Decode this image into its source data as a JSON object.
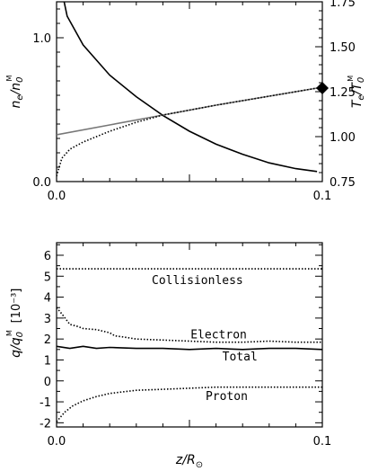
{
  "chart_data": [
    {
      "type": "line",
      "panel": "top",
      "xlabel": "",
      "ylabel_left": "n_e/n_0^M",
      "ylabel_right": "T_e/T_0^M",
      "xlim": [
        0.0,
        0.1
      ],
      "ylim_left": [
        0.0,
        1.25
      ],
      "ylim_right": [
        0.75,
        1.75
      ],
      "x_ticks": [
        "0.0",
        "0.1"
      ],
      "y_ticks_left": [
        "0.0",
        "1.0"
      ],
      "y_ticks_right": [
        "0.75",
        "1.00",
        "1.25",
        "1.50",
        "1.75"
      ],
      "series": [
        {
          "axis": "left",
          "style": "solid",
          "color": "#000000",
          "x": [
            0.0,
            0.004,
            0.01,
            0.02,
            0.03,
            0.04,
            0.05,
            0.06,
            0.07,
            0.08,
            0.09,
            0.098
          ],
          "y": [
            1.5,
            1.15,
            0.95,
            0.74,
            0.59,
            0.46,
            0.35,
            0.26,
            0.19,
            0.13,
            0.09,
            0.07
          ]
        },
        {
          "axis": "right",
          "style": "solid",
          "color": "#777777",
          "x": [
            0.0,
            0.02,
            0.04,
            0.06,
            0.08,
            0.098
          ],
          "y": [
            1.01,
            1.065,
            1.12,
            1.175,
            1.225,
            1.27
          ]
        },
        {
          "axis": "right",
          "style": "dotted",
          "color": "#000000",
          "x": [
            0.0,
            0.002,
            0.005,
            0.01,
            0.02,
            0.03,
            0.04,
            0.06,
            0.08,
            0.098
          ],
          "y": [
            0.78,
            0.88,
            0.93,
            0.97,
            1.03,
            1.08,
            1.12,
            1.175,
            1.225,
            1.27
          ]
        }
      ],
      "marker": {
        "axis": "right",
        "shape": "diamond",
        "x": 0.1,
        "y": 1.27
      }
    },
    {
      "type": "line",
      "panel": "bottom",
      "xlabel": "z/R_⊙",
      "ylabel": "q/q_0^M",
      "ylabel_units": "[10⁻³]",
      "xlim": [
        0.0,
        0.1
      ],
      "ylim": [
        -2.2,
        6.6
      ],
      "x_ticks": [
        "0.0",
        "0.1"
      ],
      "y_ticks": [
        "-2",
        "-1",
        "0",
        "1",
        "2",
        "3",
        "4",
        "5",
        "6"
      ],
      "series": [
        {
          "style": "dotted",
          "x": [
            0.0,
            0.1
          ],
          "y": [
            5.35,
            5.35
          ]
        },
        {
          "style": "dotted",
          "x": [
            0.0,
            0.002,
            0.005,
            0.008,
            0.01,
            0.015,
            0.02,
            0.022,
            0.025,
            0.03,
            0.04,
            0.05,
            0.06,
            0.07,
            0.08,
            0.09,
            0.1
          ],
          "y": [
            3.5,
            3.2,
            2.7,
            2.6,
            2.5,
            2.45,
            2.3,
            2.15,
            2.1,
            2.0,
            1.95,
            1.9,
            1.85,
            1.85,
            1.9,
            1.85,
            1.85
          ]
        },
        {
          "style": "solid",
          "x": [
            0.0,
            0.005,
            0.01,
            0.015,
            0.02,
            0.03,
            0.04,
            0.05,
            0.06,
            0.07,
            0.08,
            0.09,
            0.1
          ],
          "y": [
            1.65,
            1.55,
            1.65,
            1.55,
            1.6,
            1.55,
            1.55,
            1.5,
            1.55,
            1.5,
            1.55,
            1.55,
            1.5
          ]
        },
        {
          "style": "dotted",
          "x": [
            0.0,
            0.003,
            0.006,
            0.01,
            0.015,
            0.02,
            0.03,
            0.04,
            0.05,
            0.06,
            0.07,
            0.08,
            0.09,
            0.1
          ],
          "y": [
            -1.95,
            -1.5,
            -1.2,
            -0.95,
            -0.75,
            -0.6,
            -0.45,
            -0.4,
            -0.35,
            -0.3,
            -0.3,
            -0.3,
            -0.3,
            -0.3
          ]
        }
      ],
      "annotations": [
        {
          "text": "Collisionless",
          "x": 0.053,
          "y": 4.85
        },
        {
          "text": "Electron",
          "x": 0.061,
          "y": 2.25
        },
        {
          "text": "Total",
          "x": 0.069,
          "y": 1.2
        },
        {
          "text": "Proton",
          "x": 0.064,
          "y": -0.7
        }
      ]
    }
  ]
}
